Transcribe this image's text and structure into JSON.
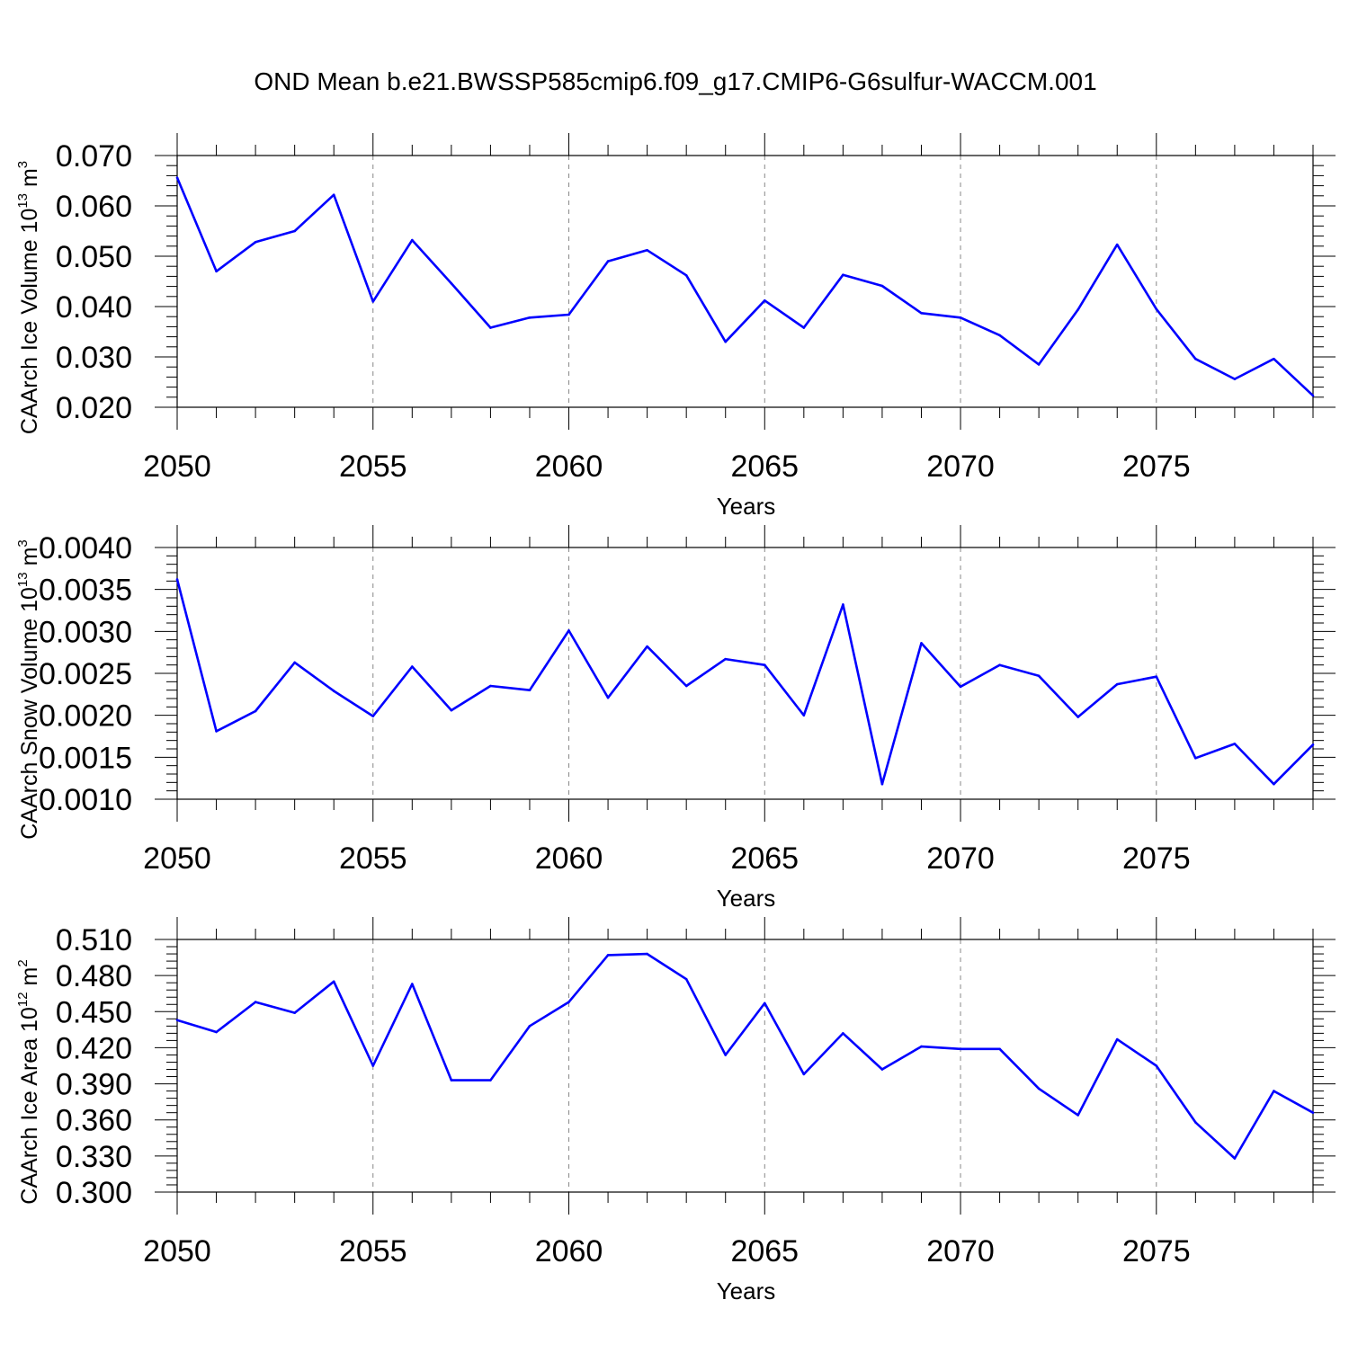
{
  "title": "OND Mean b.e21.BWSSP585cmip6.f09_g17.CMIP6-G6sulfur-WACCM.001",
  "colors": {
    "line": "#0000ff",
    "axis": "#000000",
    "grid": "#888888"
  },
  "chart_data": [
    {
      "type": "line",
      "xlabel": "Years",
      "ylabel": {
        "text": "CAArch Ice Volume 10",
        "exp": "13",
        "unit": " m",
        "unit_exp": "3"
      },
      "xlim": [
        2050,
        2079
      ],
      "xticks": [
        "2050",
        "2055",
        "2060",
        "2065",
        "2070",
        "2075"
      ],
      "ylim": [
        0.02,
        0.07
      ],
      "yticks": [
        "0.020",
        "0.030",
        "0.040",
        "0.050",
        "0.060",
        "0.070"
      ],
      "grid": "vertical-dashed",
      "x": [
        2050,
        2051,
        2052,
        2053,
        2054,
        2055,
        2056,
        2057,
        2058,
        2059,
        2060,
        2061,
        2062,
        2063,
        2064,
        2065,
        2066,
        2067,
        2068,
        2069,
        2070,
        2071,
        2072,
        2073,
        2074,
        2075,
        2076,
        2077,
        2078,
        2079
      ],
      "values": [
        0.0656,
        0.047,
        0.0528,
        0.055,
        0.0622,
        0.041,
        0.0532,
        0.0446,
        0.0358,
        0.0378,
        0.0384,
        0.049,
        0.0512,
        0.0462,
        0.033,
        0.0412,
        0.0358,
        0.0463,
        0.0441,
        0.0387,
        0.0378,
        0.0343,
        0.0285,
        0.0394,
        0.0523,
        0.0395,
        0.0296,
        0.0256,
        0.0296,
        0.0223
      ]
    },
    {
      "type": "line",
      "xlabel": "Years",
      "ylabel": {
        "text": "CAArch Snow Volume 10",
        "exp": "13",
        "unit": " m",
        "unit_exp": "3"
      },
      "xlim": [
        2050,
        2079
      ],
      "xticks": [
        "2050",
        "2055",
        "2060",
        "2065",
        "2070",
        "2075"
      ],
      "ylim": [
        0.001,
        0.004
      ],
      "yticks": [
        "0.0010",
        "0.0015",
        "0.0020",
        "0.0025",
        "0.0030",
        "0.0035",
        "0.0040"
      ],
      "grid": "vertical-dashed",
      "x": [
        2050,
        2051,
        2052,
        2053,
        2054,
        2055,
        2056,
        2057,
        2058,
        2059,
        2060,
        2061,
        2062,
        2063,
        2064,
        2065,
        2066,
        2067,
        2068,
        2069,
        2070,
        2071,
        2072,
        2073,
        2074,
        2075,
        2076,
        2077,
        2078,
        2079
      ],
      "values": [
        0.00362,
        0.00181,
        0.00205,
        0.00263,
        0.00229,
        0.00199,
        0.00258,
        0.00206,
        0.00235,
        0.0023,
        0.00301,
        0.00221,
        0.00282,
        0.00235,
        0.00267,
        0.0026,
        0.002,
        0.00332,
        0.00118,
        0.00286,
        0.00234,
        0.0026,
        0.00247,
        0.00198,
        0.00237,
        0.00246,
        0.00149,
        0.00166,
        0.00118,
        0.00165
      ]
    },
    {
      "type": "line",
      "xlabel": "Years",
      "ylabel": {
        "text": "CAArch Ice Area 10",
        "exp": "12",
        "unit": " m",
        "unit_exp": "2"
      },
      "xlim": [
        2050,
        2079
      ],
      "xticks": [
        "2050",
        "2055",
        "2060",
        "2065",
        "2070",
        "2075"
      ],
      "ylim": [
        0.3,
        0.51
      ],
      "yticks": [
        "0.300",
        "0.330",
        "0.360",
        "0.390",
        "0.420",
        "0.450",
        "0.480",
        "0.510"
      ],
      "grid": "vertical-dashed",
      "x": [
        2050,
        2051,
        2052,
        2053,
        2054,
        2055,
        2056,
        2057,
        2058,
        2059,
        2060,
        2061,
        2062,
        2063,
        2064,
        2065,
        2066,
        2067,
        2068,
        2069,
        2070,
        2071,
        2072,
        2073,
        2074,
        2075,
        2076,
        2077,
        2078,
        2079
      ],
      "values": [
        0.443,
        0.433,
        0.458,
        0.449,
        0.475,
        0.405,
        0.473,
        0.393,
        0.393,
        0.438,
        0.458,
        0.497,
        0.498,
        0.477,
        0.414,
        0.457,
        0.398,
        0.432,
        0.402,
        0.421,
        0.419,
        0.419,
        0.386,
        0.364,
        0.427,
        0.405,
        0.358,
        0.328,
        0.384,
        0.366
      ]
    }
  ]
}
